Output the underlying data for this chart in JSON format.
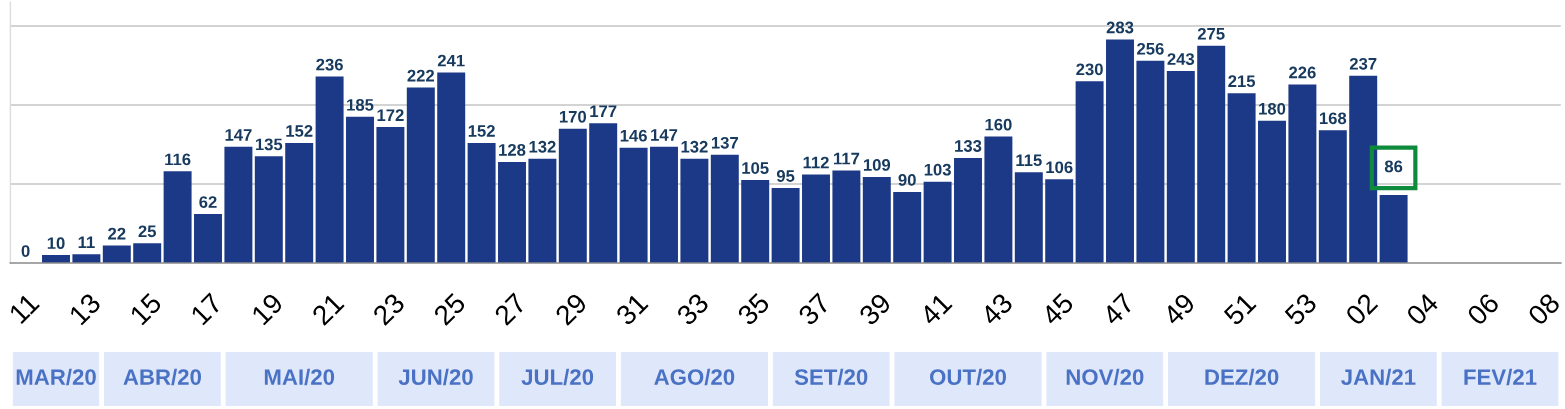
{
  "chart_data": {
    "type": "bar",
    "categories": [
      "11",
      null,
      "13",
      null,
      "15",
      null,
      "17",
      null,
      "19",
      null,
      "21",
      null,
      "23",
      null,
      "25",
      null,
      "27",
      null,
      "29",
      null,
      "31",
      null,
      "33",
      null,
      "35",
      null,
      "37",
      null,
      "39",
      null,
      "41",
      null,
      "43",
      null,
      "45",
      null,
      "47",
      null,
      "49",
      null,
      "51",
      null,
      "53",
      null,
      "02",
      null,
      "04",
      null,
      "06",
      null,
      "08"
    ],
    "values": [
      0,
      10,
      11,
      22,
      25,
      116,
      62,
      147,
      135,
      152,
      236,
      185,
      172,
      222,
      241,
      152,
      128,
      132,
      170,
      177,
      146,
      147,
      132,
      137,
      105,
      95,
      112,
      117,
      109,
      90,
      103,
      133,
      160,
      115,
      106,
      230,
      283,
      256,
      243,
      275,
      215,
      180,
      226,
      168,
      237,
      86,
      null,
      null,
      null,
      null,
      null
    ],
    "color": "#1c3987",
    "ylim": [
      0,
      330
    ],
    "yticks": [
      {
        "value": 100,
        "label": null
      },
      {
        "value": 200,
        "label": null
      },
      {
        "value": 300,
        "label": null
      }
    ],
    "grid": "y",
    "tick_labels": "x",
    "data_labels": true,
    "annotations": [
      "MAR/20",
      "ABR/20",
      "MAI/20",
      "JUN/20",
      "JUL/20",
      "AGO/20",
      "SET/20",
      "OUT/20",
      "NOV/20",
      "DEZ/20",
      "JAN/21",
      "FEV/21"
    ]
  }
}
